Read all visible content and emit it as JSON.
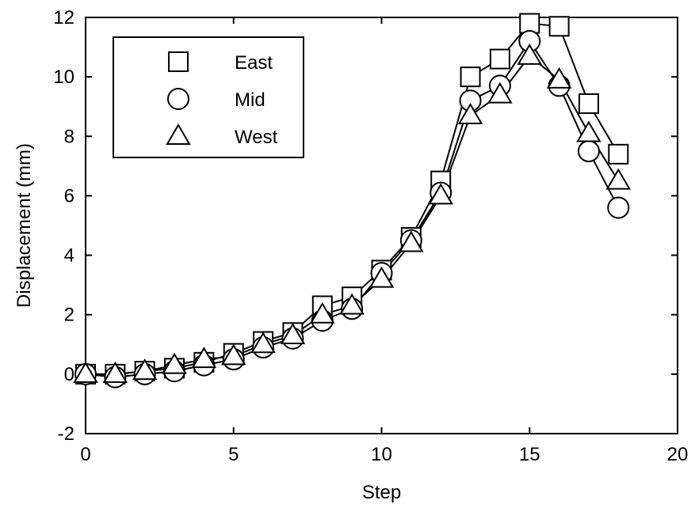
{
  "chart_data": {
    "type": "line",
    "xlabel": "Step",
    "ylabel": "Displacement (mm)",
    "xlim": [
      0,
      20
    ],
    "ylim": [
      -2,
      12
    ],
    "xticks": [
      0,
      5,
      10,
      15,
      20
    ],
    "yticks": [
      -2,
      0,
      2,
      4,
      6,
      8,
      10,
      12
    ],
    "grid": false,
    "legend_position": "top-left",
    "line_color": "#000000",
    "series": [
      {
        "name": "East",
        "marker": "square",
        "x": [
          0,
          1,
          2,
          3,
          4,
          5,
          6,
          7,
          8,
          9,
          10,
          11,
          12,
          13,
          14,
          15,
          16,
          17,
          18
        ],
        "values": [
          0.0,
          0.0,
          0.1,
          0.2,
          0.4,
          0.7,
          1.1,
          1.4,
          2.3,
          2.6,
          3.5,
          4.6,
          6.5,
          10.0,
          10.6,
          11.8,
          11.7,
          9.1,
          7.4
        ]
      },
      {
        "name": "Mid",
        "marker": "circle",
        "x": [
          0,
          1,
          2,
          3,
          4,
          5,
          6,
          7,
          8,
          9,
          10,
          11,
          12,
          13,
          14,
          15,
          16,
          17,
          18
        ],
        "values": [
          0.0,
          -0.1,
          0.0,
          0.1,
          0.3,
          0.5,
          0.9,
          1.2,
          1.8,
          2.2,
          3.4,
          4.5,
          6.1,
          9.2,
          9.7,
          11.2,
          9.7,
          7.5,
          5.6
        ]
      },
      {
        "name": "West",
        "marker": "triangle",
        "x": [
          0,
          1,
          2,
          3,
          4,
          5,
          6,
          7,
          8,
          9,
          10,
          11,
          12,
          13,
          14,
          15,
          16,
          17,
          18
        ],
        "values": [
          0.0,
          0.0,
          0.1,
          0.3,
          0.5,
          0.6,
          1.0,
          1.3,
          2.0,
          2.3,
          3.2,
          4.4,
          6.0,
          8.7,
          9.4,
          10.7,
          9.9,
          8.1,
          6.5
        ]
      }
    ]
  }
}
